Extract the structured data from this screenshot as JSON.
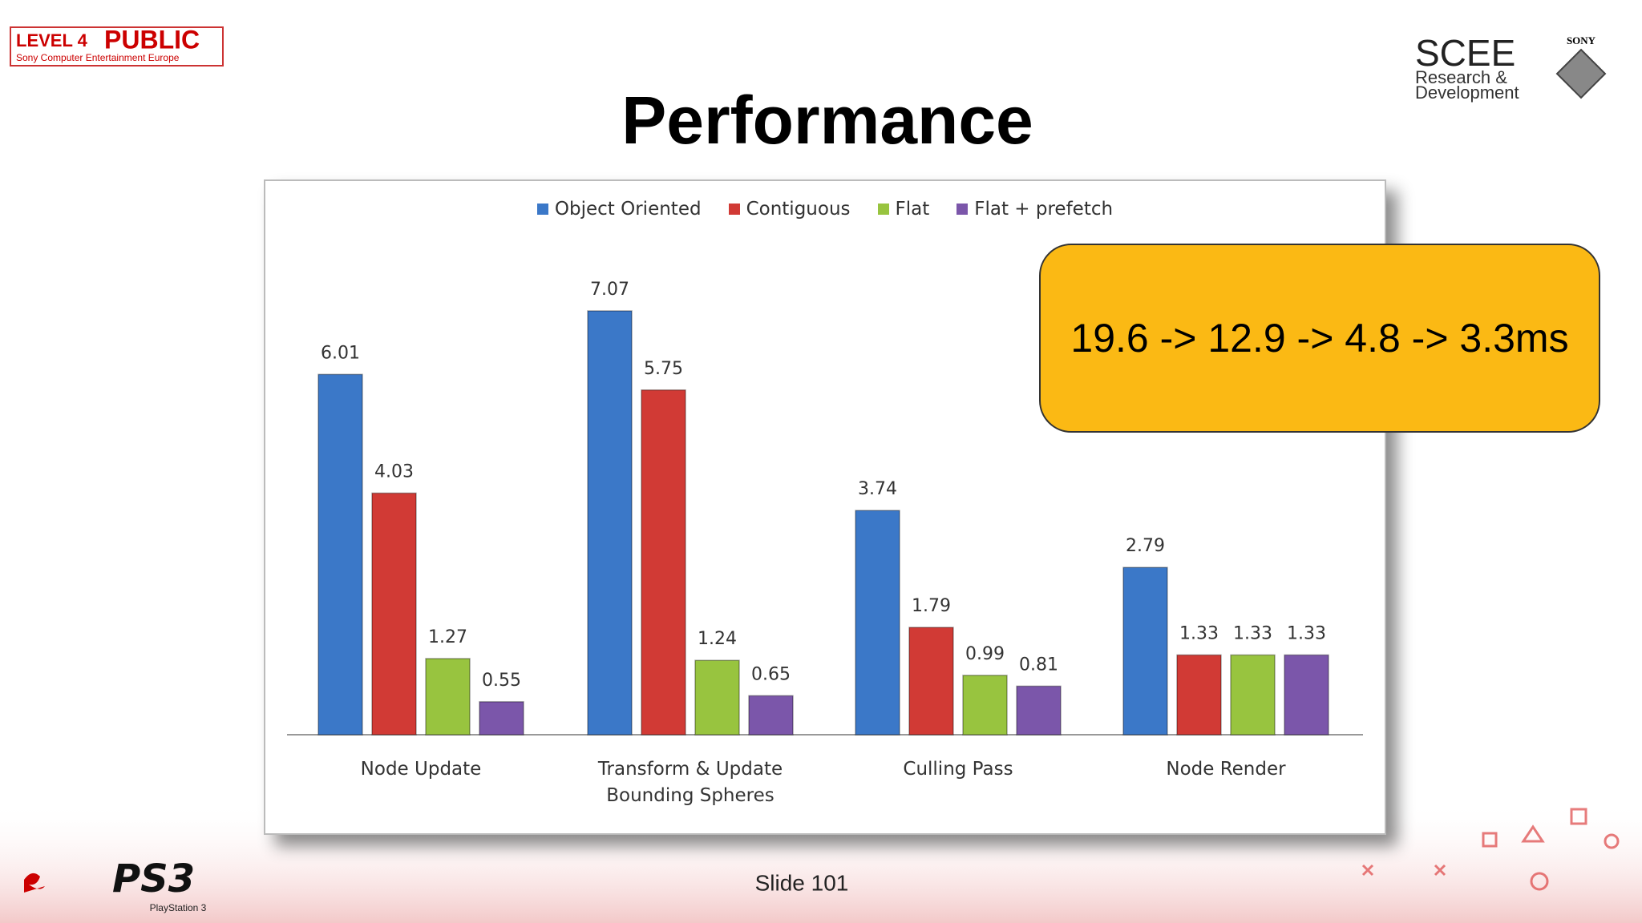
{
  "slide": {
    "title": "Performance",
    "badge_level": "LEVEL 4",
    "badge_public": "PUBLIC",
    "badge_org": "Sony Computer Entertainment Europe",
    "scee": "SCEE",
    "scee_sub1": "Research &",
    "scee_sub2": "Development",
    "sony": "SONY",
    "ps3": "PS3",
    "ps3_sub": "PlayStation 3",
    "footer": "Slide 101"
  },
  "chart_data": {
    "type": "bar",
    "categories": [
      "Node Update",
      "Transform & Update Bounding Spheres",
      "Culling Pass",
      "Node Render"
    ],
    "series": [
      {
        "name": "Object Oriented",
        "color": "#3b78c8",
        "values": [
          6.01,
          7.07,
          3.74,
          2.79
        ]
      },
      {
        "name": "Contiguous",
        "color": "#d13a35",
        "values": [
          4.03,
          5.75,
          1.79,
          1.33
        ]
      },
      {
        "name": "Flat",
        "color": "#98c43f",
        "values": [
          1.27,
          1.24,
          0.99,
          1.33
        ]
      },
      {
        "name": "Flat + prefetch",
        "color": "#7b56aa",
        "values": [
          0.55,
          0.65,
          0.81,
          1.33
        ]
      }
    ],
    "legend": "top",
    "annotations": [
      "19.6 -> 12.9 -> 4.8 -> 3.3ms"
    ]
  }
}
